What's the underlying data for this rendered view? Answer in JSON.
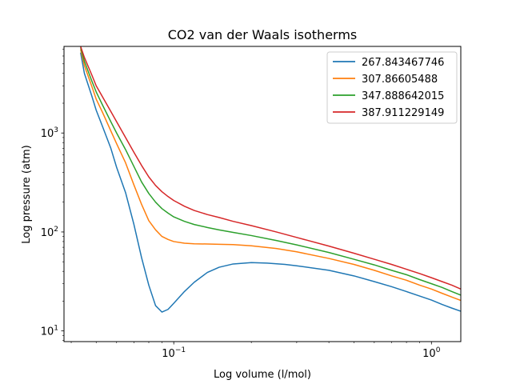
{
  "chart_data": {
    "type": "line",
    "title": "CO2 van der Waals isotherms",
    "xlabel": "Log volume (l/mol)",
    "ylabel": "Log pressure (atm)",
    "xscale": "log",
    "yscale": "log",
    "xlim": [
      0.0375,
      1.3
    ],
    "ylim": [
      7.8,
      7500
    ],
    "x_ticks": [
      {
        "value": 0.1,
        "base": "10",
        "exp": "−1"
      },
      {
        "value": 1.0,
        "base": "10",
        "exp": "0"
      }
    ],
    "y_ticks": [
      {
        "value": 10,
        "base": "10",
        "exp": "1"
      },
      {
        "value": 100,
        "base": "10",
        "exp": "2"
      },
      {
        "value": 1000,
        "base": "10",
        "exp": "3"
      }
    ],
    "legend_position": "top-right",
    "grid": false,
    "series": [
      {
        "name": "267.843467746",
        "color": "#1f77b4",
        "points": [
          [
            0.0435,
            6500
          ],
          [
            0.045,
            4000
          ],
          [
            0.048,
            2400
          ],
          [
            0.05,
            1700
          ],
          [
            0.053,
            1150
          ],
          [
            0.057,
            700
          ],
          [
            0.06,
            450
          ],
          [
            0.065,
            250
          ],
          [
            0.07,
            120
          ],
          [
            0.075,
            55
          ],
          [
            0.08,
            29
          ],
          [
            0.085,
            18
          ],
          [
            0.09,
            15.5
          ],
          [
            0.095,
            16.5
          ],
          [
            0.1,
            19
          ],
          [
            0.11,
            25
          ],
          [
            0.12,
            31
          ],
          [
            0.135,
            39
          ],
          [
            0.15,
            44
          ],
          [
            0.17,
            47.5
          ],
          [
            0.2,
            49
          ],
          [
            0.23,
            48.5
          ],
          [
            0.27,
            47
          ],
          [
            0.3,
            45.5
          ],
          [
            0.4,
            41
          ],
          [
            0.5,
            36
          ],
          [
            0.6,
            31.5
          ],
          [
            0.7,
            28
          ],
          [
            0.8,
            25
          ],
          [
            0.9,
            22.5
          ],
          [
            1.0,
            20.5
          ],
          [
            1.1,
            18.5
          ],
          [
            1.2,
            17
          ],
          [
            1.3,
            15.8
          ]
        ]
      },
      {
        "name": "307.86605488",
        "color": "#ff7f0e",
        "points": [
          [
            0.0435,
            7000
          ],
          [
            0.045,
            4800
          ],
          [
            0.048,
            3000
          ],
          [
            0.05,
            2200
          ],
          [
            0.053,
            1600
          ],
          [
            0.057,
            1050
          ],
          [
            0.06,
            780
          ],
          [
            0.065,
            500
          ],
          [
            0.07,
            300
          ],
          [
            0.075,
            190
          ],
          [
            0.08,
            130
          ],
          [
            0.085,
            105
          ],
          [
            0.09,
            90
          ],
          [
            0.095,
            84
          ],
          [
            0.1,
            80
          ],
          [
            0.11,
            77
          ],
          [
            0.12,
            76
          ],
          [
            0.135,
            75.5
          ],
          [
            0.15,
            75
          ],
          [
            0.17,
            74.5
          ],
          [
            0.2,
            72.5
          ],
          [
            0.25,
            68
          ],
          [
            0.3,
            63
          ],
          [
            0.4,
            54
          ],
          [
            0.5,
            47
          ],
          [
            0.6,
            41
          ],
          [
            0.7,
            36
          ],
          [
            0.8,
            32.5
          ],
          [
            0.9,
            29
          ],
          [
            1.0,
            26.5
          ],
          [
            1.1,
            24
          ],
          [
            1.2,
            22
          ],
          [
            1.3,
            20.3
          ]
        ]
      },
      {
        "name": "347.888642015",
        "color": "#2ca02c",
        "points": [
          [
            0.0435,
            7300
          ],
          [
            0.045,
            5300
          ],
          [
            0.048,
            3400
          ],
          [
            0.05,
            2600
          ],
          [
            0.053,
            1900
          ],
          [
            0.057,
            1300
          ],
          [
            0.06,
            1000
          ],
          [
            0.065,
            680
          ],
          [
            0.07,
            460
          ],
          [
            0.075,
            320
          ],
          [
            0.08,
            245
          ],
          [
            0.085,
            200
          ],
          [
            0.09,
            172
          ],
          [
            0.095,
            155
          ],
          [
            0.1,
            142
          ],
          [
            0.11,
            128
          ],
          [
            0.12,
            119
          ],
          [
            0.135,
            111
          ],
          [
            0.15,
            105
          ],
          [
            0.17,
            99
          ],
          [
            0.2,
            92
          ],
          [
            0.25,
            82
          ],
          [
            0.3,
            74
          ],
          [
            0.4,
            62
          ],
          [
            0.5,
            53
          ],
          [
            0.6,
            46.5
          ],
          [
            0.7,
            41
          ],
          [
            0.8,
            37
          ],
          [
            0.9,
            33
          ],
          [
            1.0,
            30
          ],
          [
            1.1,
            27.5
          ],
          [
            1.2,
            25
          ],
          [
            1.3,
            23
          ]
        ]
      },
      {
        "name": "387.911229149",
        "color": "#d62728",
        "points": [
          [
            0.0435,
            7500
          ],
          [
            0.045,
            5800
          ],
          [
            0.048,
            3900
          ],
          [
            0.05,
            3000
          ],
          [
            0.053,
            2300
          ],
          [
            0.057,
            1650
          ],
          [
            0.06,
            1300
          ],
          [
            0.065,
            900
          ],
          [
            0.07,
            640
          ],
          [
            0.075,
            470
          ],
          [
            0.08,
            360
          ],
          [
            0.085,
            295
          ],
          [
            0.09,
            255
          ],
          [
            0.095,
            228
          ],
          [
            0.1,
            208
          ],
          [
            0.11,
            182
          ],
          [
            0.12,
            165
          ],
          [
            0.135,
            150
          ],
          [
            0.15,
            140
          ],
          [
            0.17,
            128
          ],
          [
            0.2,
            116
          ],
          [
            0.25,
            100
          ],
          [
            0.3,
            88
          ],
          [
            0.4,
            72
          ],
          [
            0.5,
            61
          ],
          [
            0.6,
            53
          ],
          [
            0.7,
            47
          ],
          [
            0.8,
            42
          ],
          [
            0.9,
            38
          ],
          [
            1.0,
            34.5
          ],
          [
            1.1,
            31.5
          ],
          [
            1.2,
            29
          ],
          [
            1.3,
            26.5
          ]
        ]
      }
    ]
  }
}
